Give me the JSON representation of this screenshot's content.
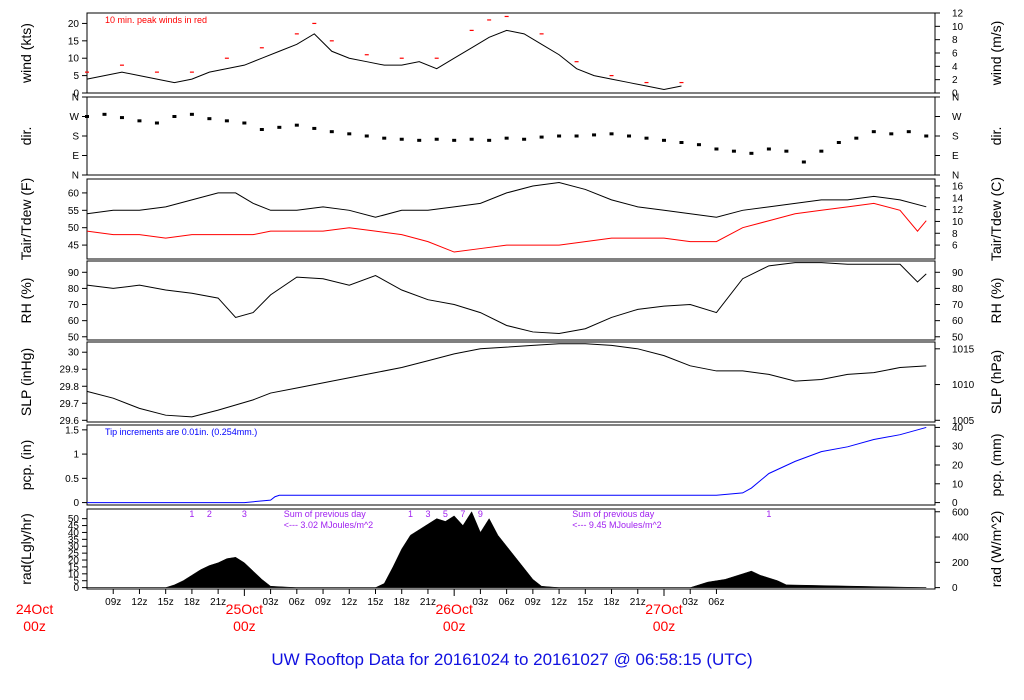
{
  "footer_title": "UW Rooftop Data for 20161024  to  20161027 @ 06:58:15  (UTC)",
  "colors": {
    "black": "#000000",
    "red": "#ff0000",
    "blue": "#0000ff",
    "purple": "#a020f0",
    "title_blue": "#1010e0"
  },
  "chart_data": [
    {
      "type": "line",
      "id": "wind",
      "left_label": "wind (kts)",
      "right_label": "wind (m/s)",
      "annotation": "10 min. peak winds in red",
      "ylim": [
        0,
        23
      ],
      "left_ticks": [
        0,
        5,
        10,
        15,
        20
      ],
      "right_ticks": [
        0,
        2,
        4,
        6,
        8,
        10,
        12
      ],
      "series": [
        {
          "name": "wind",
          "color": "#000000",
          "x": [
            6,
            8,
            10,
            12,
            14,
            16,
            18,
            20,
            22,
            24,
            26,
            28,
            30,
            32,
            34,
            36,
            38,
            40,
            42,
            44,
            46,
            48,
            50,
            52,
            54,
            56,
            58,
            60,
            62,
            64,
            66,
            68,
            70,
            72,
            74
          ],
          "y": [
            4,
            5,
            6,
            5,
            4,
            3,
            4,
            6,
            7,
            8,
            10,
            12,
            14,
            17,
            12,
            10,
            9,
            8,
            8,
            9,
            7,
            10,
            13,
            16,
            18,
            17,
            14,
            11,
            7,
            5,
            4,
            3,
            2,
            1,
            2
          ]
        },
        {
          "name": "10 min. peak winds in red",
          "color": "#ff0000",
          "x": [
            6,
            10,
            14,
            18,
            22,
            26,
            30,
            32,
            34,
            38,
            42,
            46,
            50,
            52,
            54,
            58,
            62,
            66,
            70,
            74
          ],
          "y": [
            6,
            8,
            6,
            6,
            10,
            13,
            17,
            20,
            15,
            11,
            10,
            10,
            18,
            21,
            22,
            17,
            9,
            5,
            3,
            3
          ]
        }
      ]
    },
    {
      "type": "scatter",
      "id": "dir",
      "left_label": "dir.",
      "right_label": "dir.",
      "ylim": [
        0,
        360
      ],
      "tick_labels": [
        "N",
        "E",
        "S",
        "W",
        "N"
      ],
      "tick_values": [
        0,
        90,
        180,
        270,
        360
      ],
      "series": [
        {
          "name": "dir",
          "color": "#000000",
          "x": [
            6,
            8,
            10,
            12,
            14,
            16,
            18,
            20,
            22,
            24,
            26,
            28,
            30,
            32,
            34,
            36,
            38,
            40,
            42,
            44,
            46,
            48,
            50,
            52,
            54,
            56,
            58,
            60,
            62,
            64,
            66,
            68,
            70,
            72,
            74,
            76,
            78,
            80,
            82,
            84,
            86,
            88,
            90,
            92,
            94,
            96,
            98,
            100,
            102
          ],
          "y": [
            270,
            280,
            265,
            250,
            240,
            270,
            280,
            260,
            250,
            240,
            210,
            220,
            230,
            215,
            200,
            190,
            180,
            170,
            165,
            160,
            165,
            160,
            165,
            160,
            170,
            165,
            175,
            180,
            180,
            185,
            190,
            180,
            170,
            160,
            150,
            140,
            120,
            110,
            100,
            120,
            110,
            60,
            110,
            150,
            170,
            200,
            190,
            200,
            180
          ]
        }
      ]
    },
    {
      "type": "line",
      "id": "temp",
      "left_label": "Tair/Tdew (F)",
      "right_label": "Tair/Tdew (C)",
      "ylim": [
        41,
        64
      ],
      "left_ticks": [
        45,
        50,
        55,
        60
      ],
      "right_ticks": [
        6,
        8,
        10,
        12,
        14,
        16
      ],
      "series": [
        {
          "name": "Tair",
          "color": "#000000",
          "x": [
            6,
            9,
            12,
            15,
            18,
            21,
            23,
            25,
            27,
            30,
            33,
            36,
            39,
            42,
            45,
            48,
            51,
            54,
            57,
            60,
            63,
            66,
            69,
            72,
            75,
            78,
            81,
            84,
            87,
            90,
            93,
            96,
            99,
            102
          ],
          "y": [
            54,
            55,
            55,
            56,
            58,
            60,
            60,
            57,
            55,
            55,
            56,
            55,
            53,
            55,
            55,
            56,
            57,
            60,
            62,
            63,
            61,
            58,
            56,
            55,
            54,
            53,
            55,
            56,
            57,
            58,
            58,
            59,
            58,
            56
          ]
        },
        {
          "name": "Tdew",
          "color": "#ff0000",
          "x": [
            6,
            9,
            12,
            15,
            18,
            21,
            23,
            25,
            27,
            30,
            33,
            36,
            39,
            42,
            45,
            48,
            51,
            54,
            57,
            60,
            63,
            66,
            69,
            72,
            75,
            78,
            81,
            84,
            87,
            90,
            93,
            96,
            99,
            101,
            102
          ],
          "y": [
            49,
            48,
            48,
            47,
            48,
            48,
            48,
            48,
            49,
            49,
            49,
            50,
            49,
            48,
            46,
            43,
            44,
            45,
            45,
            45,
            46,
            47,
            47,
            47,
            46,
            46,
            50,
            52,
            54,
            55,
            56,
            57,
            55,
            49,
            52
          ]
        }
      ]
    },
    {
      "type": "line",
      "id": "rh",
      "left_label": "RH (%)",
      "right_label": "RH (%)",
      "ylim": [
        48,
        97
      ],
      "left_ticks": [
        50,
        60,
        70,
        80,
        90
      ],
      "right_ticks": [
        50,
        60,
        70,
        80,
        90
      ],
      "series": [
        {
          "name": "RH",
          "color": "#000000",
          "x": [
            6,
            9,
            12,
            15,
            18,
            21,
            23,
            25,
            27,
            30,
            33,
            36,
            39,
            42,
            45,
            48,
            51,
            54,
            57,
            60,
            63,
            66,
            69,
            72,
            75,
            78,
            81,
            84,
            87,
            90,
            93,
            96,
            99,
            101,
            102
          ],
          "y": [
            82,
            80,
            82,
            79,
            77,
            74,
            62,
            65,
            76,
            87,
            86,
            82,
            88,
            79,
            73,
            70,
            65,
            57,
            53,
            52,
            55,
            62,
            67,
            69,
            70,
            65,
            86,
            94,
            96,
            96,
            95,
            95,
            95,
            84,
            89
          ]
        }
      ]
    },
    {
      "type": "line",
      "id": "slp",
      "left_label": "SLP (inHg)",
      "right_label": "SLP (hPa)",
      "ylim": [
        29.59,
        30.06
      ],
      "left_ticks": [
        29.6,
        29.7,
        29.8,
        29.9,
        30.0
      ],
      "right_ticks": [
        1005,
        1010,
        1015
      ],
      "series": [
        {
          "name": "SLP",
          "color": "#000000",
          "x": [
            6,
            9,
            12,
            15,
            18,
            21,
            23,
            25,
            27,
            30,
            33,
            36,
            39,
            42,
            45,
            48,
            51,
            54,
            57,
            60,
            63,
            66,
            69,
            72,
            75,
            78,
            81,
            84,
            87,
            90,
            93,
            96,
            99,
            102
          ],
          "y": [
            29.77,
            29.73,
            29.67,
            29.63,
            29.62,
            29.66,
            29.69,
            29.72,
            29.76,
            29.79,
            29.82,
            29.85,
            29.88,
            29.91,
            29.95,
            29.99,
            30.02,
            30.03,
            30.04,
            30.05,
            30.05,
            30.04,
            30.02,
            29.98,
            29.92,
            29.89,
            29.89,
            29.87,
            29.83,
            29.84,
            29.87,
            29.88,
            29.91,
            29.92
          ]
        }
      ]
    },
    {
      "type": "line",
      "id": "pcp",
      "left_label": "pcp. (in)",
      "right_label": "pcp. (mm)",
      "annotation": "Tip increments are 0.01in. (0.254mm.)",
      "ylim": [
        -0.05,
        1.6
      ],
      "left_ticks": [
        0.0,
        0.5,
        1.0,
        1.5
      ],
      "right_ticks": [
        0,
        10,
        20,
        30,
        40
      ],
      "series": [
        {
          "name": "pcp",
          "color": "#0000ff",
          "x": [
            6,
            12,
            18,
            24,
            27,
            27.5,
            28,
            36,
            48,
            60,
            72,
            78,
            81,
            82,
            84,
            87,
            90,
            93,
            96,
            99,
            102
          ],
          "y": [
            0.0,
            0.0,
            0.0,
            0.0,
            0.05,
            0.12,
            0.15,
            0.15,
            0.15,
            0.15,
            0.15,
            0.15,
            0.2,
            0.3,
            0.6,
            0.85,
            1.05,
            1.15,
            1.3,
            1.4,
            1.55
          ]
        }
      ]
    },
    {
      "type": "area",
      "id": "rad",
      "left_label": "rad(Lgly/hr)",
      "right_label": "rad (W/m^2)",
      "ylim": [
        -1,
        57
      ],
      "left_ticks": [
        0,
        5,
        10,
        15,
        20,
        25,
        30,
        35,
        40,
        45,
        50
      ],
      "right_ticks": [
        0,
        200,
        400,
        600
      ],
      "series": [
        {
          "name": "rad",
          "color": "#000000",
          "x": [
            6,
            12,
            15,
            16,
            17,
            18,
            19,
            20,
            21,
            22,
            23,
            24,
            25,
            26,
            27,
            30,
            36,
            39,
            40,
            41,
            42,
            43,
            44,
            45,
            46,
            47,
            48,
            49,
            50,
            51,
            52,
            53,
            54,
            55,
            56,
            57,
            58,
            60,
            66,
            72,
            75,
            76,
            77,
            78,
            79,
            80,
            81,
            82,
            83,
            84,
            85,
            86,
            102
          ],
          "y": [
            0,
            0,
            0,
            2,
            5,
            9,
            13,
            16,
            18,
            21,
            22,
            18,
            12,
            6,
            1,
            0,
            0,
            0,
            3,
            15,
            28,
            38,
            42,
            46,
            50,
            48,
            52,
            45,
            55,
            40,
            50,
            38,
            30,
            22,
            14,
            6,
            1,
            0,
            0,
            0,
            0,
            2,
            4,
            5,
            6,
            8,
            10,
            12,
            9,
            7,
            5,
            2,
            0
          ]
        }
      ],
      "ticks_marks": [
        {
          "label": "1",
          "x": 18
        },
        {
          "label": "2",
          "x": 20
        },
        {
          "label": "3",
          "x": 24
        },
        {
          "label": "1",
          "x": 43
        },
        {
          "label": "3",
          "x": 45
        },
        {
          "label": "5",
          "x": 47
        },
        {
          "label": "7",
          "x": 49
        },
        {
          "label": "9",
          "x": 51
        },
        {
          "label": "1",
          "x": 84
        }
      ],
      "annotations": [
        {
          "line1": "Sum of previous day",
          "line2": "<--- 3.02 MJoules/m^2",
          "x": 28.5
        },
        {
          "line1": "Sum of previous day",
          "line2": "<--- 9.45 MJoules/m^2",
          "x": 61.5
        }
      ]
    }
  ],
  "x_axis": {
    "xlim": [
      6,
      103
    ],
    "hour_ticks": [
      {
        "label": "09z",
        "x": 9
      },
      {
        "label": "12z",
        "x": 12
      },
      {
        "label": "15z",
        "x": 15
      },
      {
        "label": "18z",
        "x": 18
      },
      {
        "label": "21z",
        "x": 21
      },
      {
        "label": "03z",
        "x": 27
      },
      {
        "label": "06z",
        "x": 30
      },
      {
        "label": "09z",
        "x": 33
      },
      {
        "label": "12z",
        "x": 36
      },
      {
        "label": "15z",
        "x": 39
      },
      {
        "label": "18z",
        "x": 42
      },
      {
        "label": "21z",
        "x": 45
      },
      {
        "label": "03z",
        "x": 51
      },
      {
        "label": "06z",
        "x": 54
      },
      {
        "label": "09z",
        "x": 57
      },
      {
        "label": "12z",
        "x": 60
      },
      {
        "label": "15z",
        "x": 63
      },
      {
        "label": "18z",
        "x": 66
      },
      {
        "label": "21z",
        "x": 69
      },
      {
        "label": "03z",
        "x": 75
      },
      {
        "label": "06z",
        "x": 78
      }
    ],
    "day_labels": [
      {
        "line1": "24Oct",
        "line2": "00z",
        "x": 0
      },
      {
        "line1": "25Oct",
        "line2": "00z",
        "x": 24
      },
      {
        "line1": "26Oct",
        "line2": "00z",
        "x": 48
      },
      {
        "line1": "27Oct",
        "line2": "00z",
        "x": 72
      }
    ]
  }
}
